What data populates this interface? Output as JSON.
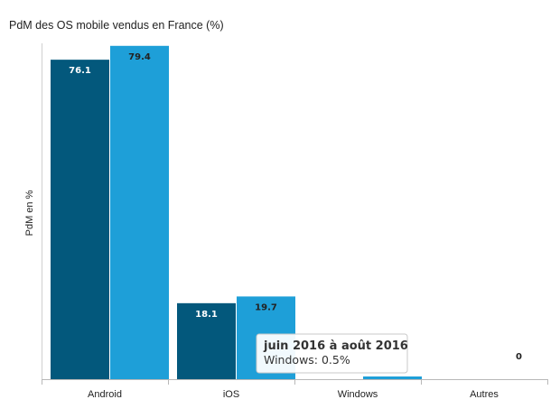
{
  "chart_data": {
    "type": "bar",
    "title": "PdM des OS mobile vendus en France (%)",
    "ylabel": "PdM en %",
    "xlabel": "",
    "categories": [
      "Android",
      "iOS",
      "Windows",
      "Autres"
    ],
    "series": [
      {
        "values": [
          76.1,
          18.1,
          null,
          0
        ],
        "color": "#03587c",
        "label_color": "#ffffff"
      },
      {
        "values": [
          79.4,
          19.7,
          0.5,
          0
        ],
        "color": "#1e9fd8",
        "label_color": "#222222"
      }
    ],
    "data_labels": [
      [
        "76.1",
        "18.1",
        "",
        ""
      ],
      [
        "79.4",
        "19.7",
        "",
        "0"
      ]
    ],
    "ylim": [
      0,
      80
    ],
    "grid": false,
    "legend": "none",
    "tooltip": {
      "title": "juin 2016 à août 2016",
      "text": "Windows: 0.5%"
    }
  }
}
